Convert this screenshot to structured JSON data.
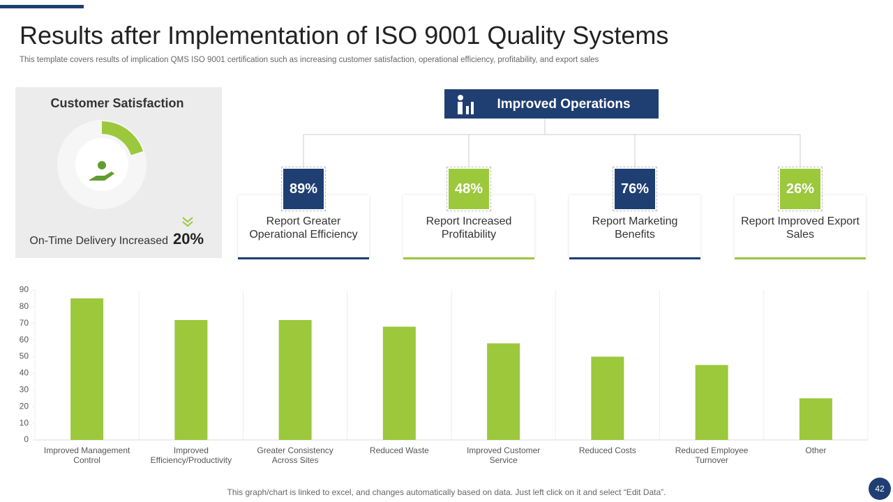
{
  "header": {
    "title": "Results after Implementation of ISO 9001 Quality Systems",
    "subtitle": "This template covers results of implication QMS ISO 9001 certification such as increasing customer satisfaction, operational efficiency, profitability, and export sales"
  },
  "satisfaction": {
    "title": "Customer Satisfaction",
    "caption": "On-Time Delivery Increased",
    "value": 20,
    "value_label": "20%"
  },
  "operations": {
    "title": "Improved Operations",
    "items": [
      {
        "value": "89%",
        "label": "Report Greater Operational Efficiency"
      },
      {
        "value": "48%",
        "label": "Report Increased Profitability"
      },
      {
        "value": "76%",
        "label": "Report Marketing Benefits"
      },
      {
        "value": "26%",
        "label": "Report Improved Export Sales"
      }
    ]
  },
  "chart_data": {
    "type": "bar",
    "categories": [
      "Improved Management Control",
      "Improved Efficiency/Productivity",
      "Greater Consistency Across Sites",
      "Reduced Waste",
      "Improved Customer Service",
      "Reduced Costs",
      "Reduced Employee Turnover",
      "Other"
    ],
    "values": [
      85,
      72,
      72,
      68,
      58,
      50,
      45,
      25
    ],
    "color": "#9cc83c",
    "ylim": [
      0,
      90
    ],
    "yticks": [
      0,
      10,
      20,
      30,
      40,
      50,
      60,
      70,
      80,
      90
    ]
  },
  "footer": {
    "note": "This graph/chart is linked to excel, and changes automatically based on data. Just left click on it and select “Edit Data”.",
    "page": "42"
  }
}
